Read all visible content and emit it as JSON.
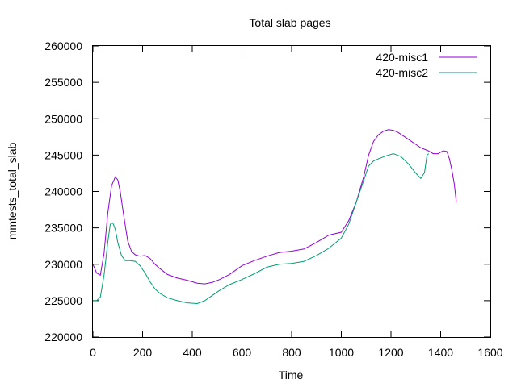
{
  "chart_data": {
    "type": "line",
    "title": "Total slab pages",
    "xlabel": "Time",
    "ylabel": "mmtests_total_slab",
    "xlim": [
      0,
      1600
    ],
    "ylim": [
      220000,
      260000
    ],
    "xticks": [
      0,
      200,
      400,
      600,
      800,
      1000,
      1200,
      1400,
      1600
    ],
    "yticks": [
      220000,
      225000,
      230000,
      235000,
      240000,
      245000,
      250000,
      255000,
      260000
    ],
    "grid": false,
    "legend_position": "top-right",
    "series": [
      {
        "name": "420-misc1",
        "color": "#9400d3",
        "x": [
          0,
          15,
          30,
          45,
          60,
          75,
          90,
          100,
          110,
          125,
          140,
          155,
          170,
          190,
          210,
          230,
          250,
          270,
          300,
          340,
          380,
          420,
          450,
          480,
          510,
          550,
          600,
          650,
          700,
          750,
          800,
          850,
          900,
          950,
          1000,
          1030,
          1060,
          1090,
          1110,
          1130,
          1150,
          1170,
          1190,
          1210,
          1230,
          1260,
          1290,
          1320,
          1350,
          1370,
          1390,
          1410,
          1425,
          1435,
          1445,
          1455,
          1463
        ],
        "y": [
          230000,
          228800,
          228500,
          231500,
          237000,
          240800,
          242000,
          241600,
          240000,
          236500,
          233200,
          231800,
          231300,
          231100,
          231200,
          230800,
          230000,
          229400,
          228600,
          228100,
          227800,
          227400,
          227300,
          227500,
          227900,
          228600,
          229800,
          230500,
          231100,
          231600,
          231800,
          232100,
          233000,
          234000,
          234400,
          236000,
          238500,
          242000,
          245000,
          246900,
          247800,
          248300,
          248500,
          248400,
          248100,
          247400,
          246700,
          246000,
          245600,
          245200,
          245200,
          245600,
          245500,
          244500,
          243000,
          241000,
          238500
        ]
      },
      {
        "name": "420-misc2",
        "color": "#009e73",
        "x": [
          0,
          15,
          30,
          45,
          60,
          70,
          80,
          90,
          100,
          115,
          130,
          150,
          170,
          190,
          210,
          230,
          250,
          270,
          300,
          340,
          380,
          420,
          450,
          480,
          510,
          550,
          600,
          650,
          700,
          750,
          800,
          850,
          900,
          950,
          1000,
          1030,
          1060,
          1090,
          1110,
          1130,
          1150,
          1180,
          1210,
          1240,
          1270,
          1300,
          1320,
          1335,
          1345,
          1352
        ],
        "y": [
          225000,
          225000,
          225500,
          228500,
          233000,
          235500,
          235700,
          234800,
          233000,
          231200,
          230500,
          230500,
          230400,
          229800,
          228800,
          227600,
          226600,
          226000,
          225400,
          225000,
          224700,
          224600,
          225000,
          225700,
          226400,
          227200,
          227900,
          228700,
          229600,
          230000,
          230100,
          230400,
          231200,
          232200,
          233600,
          235500,
          238500,
          241500,
          243500,
          244200,
          244500,
          244900,
          245200,
          244800,
          243800,
          242500,
          241800,
          242600,
          245000,
          245200
        ]
      }
    ]
  }
}
